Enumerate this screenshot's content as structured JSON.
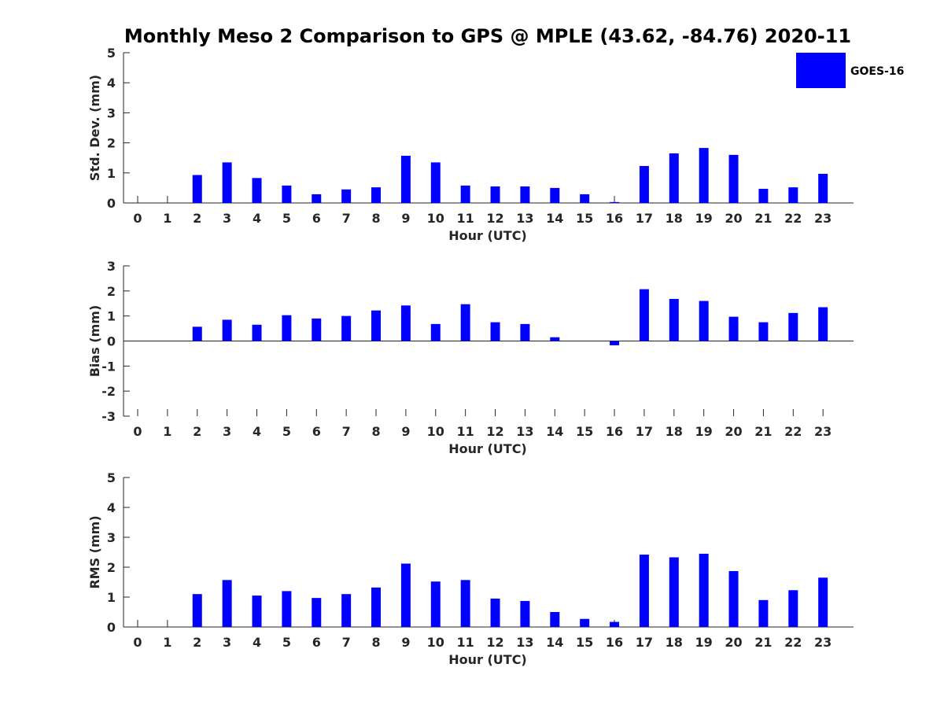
{
  "title": "Monthly Meso 2 Comparison to GPS @ MPLE (43.62, -84.76) 2020-11",
  "legend": {
    "label": "GOES-16",
    "color": "#0000ff",
    "placement": "top-right"
  },
  "colors": {
    "bar": "#0000ff",
    "axis": "#262626"
  },
  "chart_data": [
    {
      "type": "bar",
      "xlabel": "Hour (UTC)",
      "ylabel": "Std. Dev. (mm)",
      "ylim": [
        0,
        5
      ],
      "yticks": [
        "0",
        "1",
        "2",
        "3",
        "4",
        "5"
      ],
      "categories": [
        "0",
        "1",
        "2",
        "3",
        "4",
        "5",
        "6",
        "7",
        "8",
        "9",
        "10",
        "11",
        "12",
        "13",
        "14",
        "15",
        "16",
        "17",
        "18",
        "19",
        "20",
        "21",
        "22",
        "23"
      ],
      "series": [
        {
          "name": "GOES-16",
          "values": [
            0,
            0,
            0.93,
            1.35,
            0.83,
            0.58,
            0.29,
            0.45,
            0.52,
            1.57,
            1.35,
            0.58,
            0.55,
            0.55,
            0.5,
            0.29,
            0.03,
            1.23,
            1.65,
            1.83,
            1.6,
            0.47,
            0.52,
            0.97
          ]
        }
      ]
    },
    {
      "type": "bar",
      "xlabel": "Hour (UTC)",
      "ylabel": "Bias (mm)",
      "ylim": [
        -3,
        3
      ],
      "yticks": [
        "-3",
        "-2",
        "-1",
        "0",
        "1",
        "2",
        "3"
      ],
      "categories": [
        "0",
        "1",
        "2",
        "3",
        "4",
        "5",
        "6",
        "7",
        "8",
        "9",
        "10",
        "11",
        "12",
        "13",
        "14",
        "15",
        "16",
        "17",
        "18",
        "19",
        "20",
        "21",
        "22",
        "23"
      ],
      "series": [
        {
          "name": "GOES-16",
          "values": [
            0,
            0,
            0.57,
            0.85,
            0.65,
            1.03,
            0.9,
            1.0,
            1.22,
            1.42,
            0.68,
            1.47,
            0.75,
            0.68,
            0.15,
            0,
            -0.17,
            2.07,
            1.68,
            1.6,
            0.97,
            0.75,
            1.12,
            1.35
          ]
        }
      ]
    },
    {
      "type": "bar",
      "xlabel": "Hour (UTC)",
      "ylabel": "RMS (mm)",
      "ylim": [
        0,
        5
      ],
      "yticks": [
        "0",
        "1",
        "2",
        "3",
        "4",
        "5"
      ],
      "categories": [
        "0",
        "1",
        "2",
        "3",
        "4",
        "5",
        "6",
        "7",
        "8",
        "9",
        "10",
        "11",
        "12",
        "13",
        "14",
        "15",
        "16",
        "17",
        "18",
        "19",
        "20",
        "21",
        "22",
        "23"
      ],
      "series": [
        {
          "name": "GOES-16",
          "values": [
            0,
            0,
            1.1,
            1.57,
            1.05,
            1.2,
            0.97,
            1.1,
            1.32,
            2.12,
            1.52,
            1.57,
            0.95,
            0.87,
            0.5,
            0.27,
            0.17,
            2.42,
            2.33,
            2.45,
            1.87,
            0.9,
            1.23,
            1.65
          ]
        }
      ]
    }
  ]
}
